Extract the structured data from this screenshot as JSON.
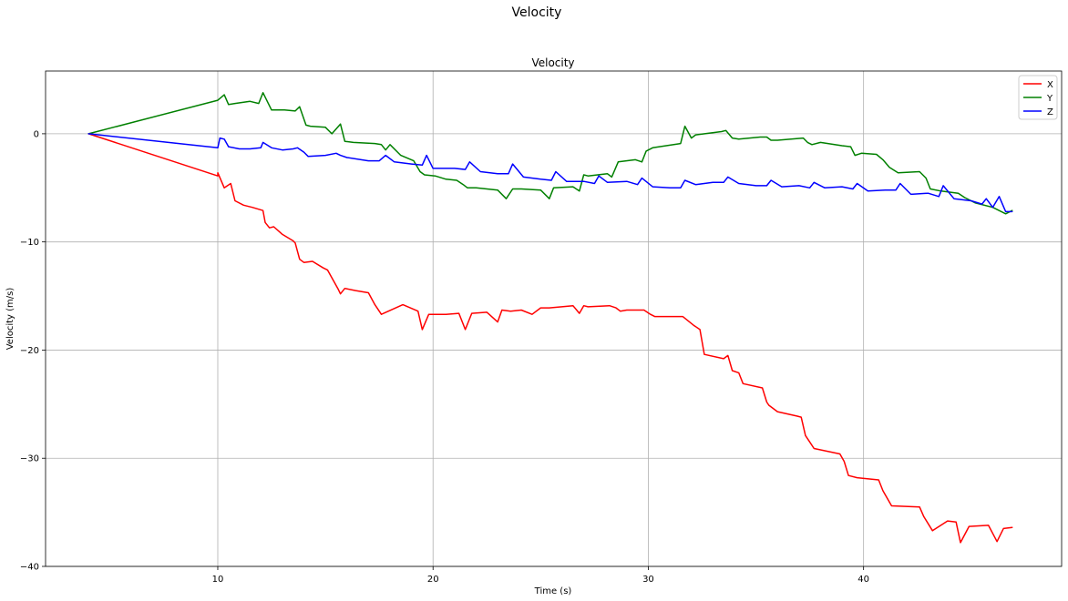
{
  "figure": {
    "suptitle": "Velocity"
  },
  "chart_data": {
    "type": "line",
    "title": "Velocity",
    "xlabel": "Time (s)",
    "ylabel": "Velocity (m/s)",
    "xlim": [
      2,
      49.2
    ],
    "ylim": [
      -40,
      5.8
    ],
    "xticks": [
      10,
      20,
      30,
      40
    ],
    "yticks": [
      0,
      -10,
      -20,
      -30,
      -40
    ],
    "ytick_labels": [
      "0",
      "−10",
      "−20",
      "−30",
      "−40"
    ],
    "grid": true,
    "legend_position": "top-right",
    "series": [
      {
        "name": "X",
        "color": "#ff0000",
        "x": [
          4.0,
          10.0,
          10.0,
          10.3,
          10.6,
          10.8,
          11.2,
          11.6,
          12.1,
          12.2,
          12.4,
          12.6,
          13.0,
          13.5,
          13.6,
          13.8,
          14.0,
          14.4,
          14.9,
          15.1,
          15.6,
          15.7,
          15.9,
          16.4,
          17.0,
          17.3,
          17.6,
          18.6,
          19.3,
          19.5,
          19.8,
          20.6,
          21.2,
          21.5,
          21.8,
          22.5,
          23.0,
          23.2,
          23.6,
          24.1,
          24.6,
          25.0,
          25.4,
          26.5,
          26.8,
          27.0,
          27.2,
          28.2,
          28.5,
          28.7,
          29.0,
          29.8,
          30.1,
          30.3,
          31.6,
          32.1,
          32.4,
          32.6,
          33.5,
          33.7,
          33.9,
          34.2,
          34.4,
          35.3,
          35.5,
          35.6,
          36.0,
          36.9,
          37.1,
          37.3,
          37.7,
          38.9,
          39.1,
          39.3,
          39.7,
          40.7,
          40.9,
          41.3,
          42.6,
          42.8,
          43.2,
          43.9,
          44.3,
          44.5,
          44.9,
          45.8,
          46.2,
          46.5,
          46.9
        ],
        "y": [
          0.0,
          -3.9,
          -3.6,
          -5.0,
          -4.6,
          -6.2,
          -6.6,
          -6.8,
          -7.1,
          -8.2,
          -8.7,
          -8.6,
          -9.3,
          -9.9,
          -10.1,
          -11.6,
          -11.9,
          -11.8,
          -12.4,
          -12.6,
          -14.4,
          -14.8,
          -14.3,
          -14.5,
          -14.7,
          -15.8,
          -16.7,
          -15.8,
          -16.4,
          -18.1,
          -16.7,
          -16.7,
          -16.6,
          -18.1,
          -16.6,
          -16.5,
          -17.4,
          -16.3,
          -16.4,
          -16.3,
          -16.7,
          -16.1,
          -16.1,
          -15.9,
          -16.6,
          -15.9,
          -16.0,
          -15.9,
          -16.1,
          -16.4,
          -16.3,
          -16.3,
          -16.7,
          -16.9,
          -16.9,
          -17.7,
          -18.1,
          -20.4,
          -20.8,
          -20.5,
          -21.9,
          -22.1,
          -23.1,
          -23.5,
          -24.8,
          -25.1,
          -25.7,
          -26.1,
          -26.2,
          -27.9,
          -29.1,
          -29.6,
          -30.3,
          -31.6,
          -31.8,
          -32.0,
          -33.0,
          -34.4,
          -34.5,
          -35.4,
          -36.7,
          -35.8,
          -35.9,
          -37.8,
          -36.3,
          -36.2,
          -37.7,
          -36.5,
          -36.4
        ]
      },
      {
        "name": "Y",
        "color": "#008000",
        "x": [
          4.0,
          10.0,
          10.3,
          10.5,
          10.8,
          11.5,
          11.9,
          12.1,
          12.5,
          13.1,
          13.6,
          13.8,
          14.1,
          14.3,
          15.0,
          15.3,
          15.7,
          15.9,
          16.3,
          17.3,
          17.6,
          17.8,
          18.0,
          18.5,
          19.1,
          19.4,
          19.6,
          20.1,
          20.6,
          21.1,
          21.4,
          21.6,
          22.0,
          23.0,
          23.4,
          23.7,
          24.1,
          25.0,
          25.4,
          25.6,
          26.5,
          26.8,
          27.0,
          27.2,
          28.1,
          28.3,
          28.6,
          29.4,
          29.7,
          29.9,
          30.2,
          31.5,
          31.7,
          32.0,
          32.2,
          33.4,
          33.6,
          33.9,
          34.2,
          35.2,
          35.5,
          35.7,
          36.0,
          37.2,
          37.4,
          37.6,
          38.0,
          39.0,
          39.4,
          39.6,
          39.9,
          40.6,
          40.9,
          41.2,
          41.6,
          42.6,
          42.9,
          43.1,
          43.6,
          44.4,
          44.7,
          45.2,
          46.0,
          46.6,
          46.9
        ],
        "y": [
          0.0,
          3.1,
          3.6,
          2.7,
          2.8,
          3.0,
          2.8,
          3.8,
          2.2,
          2.2,
          2.1,
          2.5,
          0.8,
          0.7,
          0.6,
          0.0,
          0.9,
          -0.7,
          -0.8,
          -0.9,
          -1.0,
          -1.5,
          -1.0,
          -2.0,
          -2.5,
          -3.5,
          -3.8,
          -3.9,
          -4.2,
          -4.3,
          -4.7,
          -5.0,
          -5.0,
          -5.2,
          -6.0,
          -5.1,
          -5.1,
          -5.2,
          -6.0,
          -5.0,
          -4.9,
          -5.3,
          -3.8,
          -3.9,
          -3.7,
          -4.0,
          -2.6,
          -2.4,
          -2.6,
          -1.6,
          -1.3,
          -0.9,
          0.7,
          -0.4,
          -0.1,
          0.2,
          0.3,
          -0.4,
          -0.5,
          -0.3,
          -0.3,
          -0.6,
          -0.6,
          -0.4,
          -0.8,
          -1.0,
          -0.8,
          -1.1,
          -1.2,
          -2.0,
          -1.8,
          -1.9,
          -2.4,
          -3.1,
          -3.6,
          -3.5,
          -4.1,
          -5.1,
          -5.3,
          -5.5,
          -5.9,
          -6.4,
          -6.8,
          -7.4,
          -7.1
        ],
        "smooth": false
      },
      {
        "name": "Z",
        "color": "#0000ff",
        "x": [
          4.0,
          10.0,
          10.1,
          10.3,
          10.5,
          11.0,
          11.5,
          12.0,
          12.1,
          12.5,
          13.0,
          13.5,
          13.7,
          14.0,
          14.2,
          15.0,
          15.5,
          15.7,
          16.0,
          17.0,
          17.5,
          17.8,
          18.2,
          19.0,
          19.5,
          19.7,
          20.0,
          21.0,
          21.5,
          21.7,
          22.2,
          23.0,
          23.5,
          23.7,
          24.2,
          25.0,
          25.5,
          25.7,
          26.2,
          27.0,
          27.5,
          27.7,
          28.1,
          29.0,
          29.5,
          29.7,
          30.2,
          31.0,
          31.5,
          31.7,
          32.2,
          33.0,
          33.5,
          33.7,
          34.2,
          35.0,
          35.5,
          35.7,
          36.2,
          37.0,
          37.5,
          37.7,
          38.2,
          39.0,
          39.5,
          39.7,
          40.2,
          41.0,
          41.5,
          41.7,
          42.2,
          43.0,
          43.5,
          43.7,
          44.2,
          45.0,
          45.5,
          45.7,
          46.0,
          46.3,
          46.6,
          46.9
        ],
        "y": [
          0.0,
          -1.3,
          -0.4,
          -0.5,
          -1.2,
          -1.4,
          -1.4,
          -1.3,
          -0.8,
          -1.3,
          -1.5,
          -1.4,
          -1.3,
          -1.7,
          -2.1,
          -2.0,
          -1.8,
          -2.0,
          -2.2,
          -2.5,
          -2.5,
          -2.0,
          -2.6,
          -2.8,
          -2.9,
          -2.0,
          -3.2,
          -3.2,
          -3.3,
          -2.6,
          -3.5,
          -3.7,
          -3.7,
          -2.8,
          -4.0,
          -4.2,
          -4.3,
          -3.5,
          -4.4,
          -4.4,
          -4.6,
          -3.9,
          -4.5,
          -4.4,
          -4.7,
          -4.1,
          -4.9,
          -5.0,
          -5.0,
          -4.3,
          -4.7,
          -4.5,
          -4.5,
          -4.0,
          -4.6,
          -4.8,
          -4.8,
          -4.3,
          -4.9,
          -4.8,
          -5.0,
          -4.5,
          -5.0,
          -4.9,
          -5.1,
          -4.6,
          -5.3,
          -5.2,
          -5.2,
          -4.6,
          -5.6,
          -5.5,
          -5.8,
          -4.8,
          -6.0,
          -6.2,
          -6.5,
          -6.0,
          -6.8,
          -5.8,
          -7.2,
          -7.2
        ]
      }
    ]
  }
}
